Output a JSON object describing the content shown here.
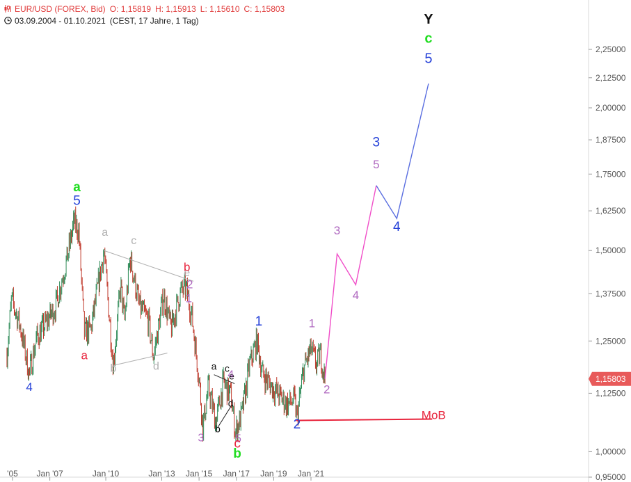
{
  "header": {
    "symbol": "EUR/USD (FOREX, Bid)",
    "open": "O: 1,15819",
    "high": "H: 1,15913",
    "low": "L: 1,15610",
    "close": "C: 1,15803",
    "range": "03.09.2004 - 01.10.2021",
    "info": "(CEST, 17 Jahre, 1 Tag)"
  },
  "colors": {
    "up": "#2e8b57",
    "down": "#c0392b",
    "blue": "#2440d8",
    "green": "#22dd22",
    "red": "#e8243c",
    "purple": "#b06ac0",
    "pink": "#f04ec8",
    "grey": "#b0b0b0",
    "projBlue": "#5a6ee0"
  },
  "chart_data": {
    "type": "line",
    "title": "",
    "xlabel": "",
    "ylabel": "",
    "yscale": "log",
    "ylim": [
      0.95,
      2.35
    ],
    "xlim": [
      2004.7,
      2025.8
    ],
    "last_price": "1,15803",
    "y_ticks": [
      {
        "v": 2.25,
        "label": "2,25000"
      },
      {
        "v": 2.125,
        "label": "2,12500"
      },
      {
        "v": 2.0,
        "label": "2,00000"
      },
      {
        "v": 1.875,
        "label": "1,87500"
      },
      {
        "v": 1.75,
        "label": "1,75000"
      },
      {
        "v": 1.625,
        "label": "1,62500"
      },
      {
        "v": 1.5,
        "label": "1,50000"
      },
      {
        "v": 1.375,
        "label": "1,37500"
      },
      {
        "v": 1.25,
        "label": "1,25000"
      },
      {
        "v": 1.125,
        "label": "1,12500"
      },
      {
        "v": 1.0,
        "label": "1,00000"
      },
      {
        "v": 0.95,
        "label": "0,95000"
      }
    ],
    "x_ticks": [
      {
        "t": 2005.0,
        "label": "'05"
      },
      {
        "t": 2007.0,
        "label": "Jan '07"
      },
      {
        "t": 2010.0,
        "label": "Jan '10"
      },
      {
        "t": 2013.0,
        "label": "Jan '13"
      },
      {
        "t": 2015.0,
        "label": "Jan '15"
      },
      {
        "t": 2017.0,
        "label": "Jan '17"
      },
      {
        "t": 2019.0,
        "label": "Jan '19"
      },
      {
        "t": 2021.0,
        "label": "Jan '21"
      }
    ],
    "price_path": [
      [
        2004.7,
        1.22
      ],
      [
        2004.95,
        1.36
      ],
      [
        2005.4,
        1.29
      ],
      [
        2005.9,
        1.17
      ],
      [
        2006.3,
        1.26
      ],
      [
        2006.6,
        1.28
      ],
      [
        2007.3,
        1.34
      ],
      [
        2007.9,
        1.47
      ],
      [
        2008.3,
        1.59
      ],
      [
        2008.55,
        1.56
      ],
      [
        2008.85,
        1.27
      ],
      [
        2009.2,
        1.28
      ],
      [
        2009.9,
        1.5
      ],
      [
        2010.4,
        1.19
      ],
      [
        2010.8,
        1.4
      ],
      [
        2011.0,
        1.3
      ],
      [
        2011.3,
        1.48
      ],
      [
        2011.8,
        1.34
      ],
      [
        2012.3,
        1.3
      ],
      [
        2012.55,
        1.21
      ],
      [
        2013.1,
        1.37
      ],
      [
        2013.5,
        1.28
      ],
      [
        2014.0,
        1.38
      ],
      [
        2014.3,
        1.39
      ],
      [
        2014.6,
        1.32
      ],
      [
        2015.0,
        1.16
      ],
      [
        2015.2,
        1.05
      ],
      [
        2015.5,
        1.14
      ],
      [
        2015.9,
        1.06
      ],
      [
        2016.3,
        1.15
      ],
      [
        2016.7,
        1.12
      ],
      [
        2016.95,
        1.04
      ],
      [
        2017.3,
        1.08
      ],
      [
        2017.7,
        1.19
      ],
      [
        2018.1,
        1.25
      ],
      [
        2018.4,
        1.17
      ],
      [
        2018.9,
        1.14
      ],
      [
        2019.3,
        1.12
      ],
      [
        2019.7,
        1.1
      ],
      [
        2020.1,
        1.11
      ],
      [
        2020.25,
        1.07
      ],
      [
        2020.6,
        1.18
      ],
      [
        2021.0,
        1.23
      ],
      [
        2021.3,
        1.19
      ],
      [
        2021.5,
        1.22
      ],
      [
        2021.75,
        1.158
      ]
    ],
    "projection_pink": [
      [
        2021.75,
        1.158
      ],
      [
        2022.4,
        1.49
      ],
      [
        2023.4,
        1.4
      ],
      [
        2024.5,
        1.71
      ]
    ],
    "projection_blue": [
      [
        2024.5,
        1.71
      ],
      [
        2025.6,
        1.6
      ],
      [
        2027.3,
        2.1
      ]
    ],
    "mob_line": {
      "t0": 2020.2,
      "t1": 2027.5,
      "v": 1.065,
      "label": "MoB"
    },
    "wave_labels": [
      {
        "t": 2005.9,
        "v": 1.13,
        "text": "4",
        "color": "blue",
        "size": 17
      },
      {
        "t": 2008.45,
        "v": 1.69,
        "text": "a",
        "color": "green",
        "size": 19,
        "bold": true
      },
      {
        "t": 2008.45,
        "v": 1.645,
        "text": "5",
        "color": "blue",
        "size": 19
      },
      {
        "t": 2008.85,
        "v": 1.205,
        "text": "a",
        "color": "red",
        "size": 17
      },
      {
        "t": 2009.95,
        "v": 1.545,
        "text": "a",
        "color": "grey",
        "size": 16
      },
      {
        "t": 2010.4,
        "v": 1.175,
        "text": "b",
        "color": "grey",
        "size": 16
      },
      {
        "t": 2011.5,
        "v": 1.52,
        "text": "c",
        "color": "grey",
        "size": 16
      },
      {
        "t": 2012.7,
        "v": 1.18,
        "text": "d",
        "color": "grey",
        "size": 16
      },
      {
        "t": 2014.35,
        "v": 1.425,
        "text": "e",
        "color": "grey",
        "size": 16
      },
      {
        "t": 2014.35,
        "v": 1.44,
        "text": "b",
        "color": "red",
        "size": 17
      },
      {
        "t": 2014.5,
        "v": 1.39,
        "text": "2",
        "color": "purple",
        "size": 17
      },
      {
        "t": 2014.45,
        "v": 1.352,
        "text": "1",
        "color": "purple",
        "size": 17
      },
      {
        "t": 2015.1,
        "v": 1.021,
        "text": "3",
        "color": "purple",
        "size": 16
      },
      {
        "t": 2015.8,
        "v": 1.18,
        "text": "a",
        "color": "black",
        "size": 14
      },
      {
        "t": 2016.5,
        "v": 1.175,
        "text": "c",
        "color": "black",
        "size": 14
      },
      {
        "t": 2016.75,
        "v": 1.157,
        "text": "e",
        "color": "black",
        "size": 14
      },
      {
        "t": 2016.7,
        "v": 1.16,
        "text": "4",
        "color": "purple",
        "size": 16
      },
      {
        "t": 2016.0,
        "v": 1.04,
        "text": "b",
        "color": "black",
        "size": 14
      },
      {
        "t": 2016.7,
        "v": 1.095,
        "text": "d",
        "color": "black",
        "size": 14
      },
      {
        "t": 2017.1,
        "v": 1.02,
        "text": "5",
        "color": "purple",
        "size": 16
      },
      {
        "t": 2017.05,
        "v": 1.008,
        "text": "c",
        "color": "red",
        "size": 19
      },
      {
        "t": 2017.05,
        "v": 0.988,
        "text": "b",
        "color": "green",
        "size": 19,
        "bold": true
      },
      {
        "t": 2018.2,
        "v": 1.29,
        "text": "1",
        "color": "blue",
        "size": 19
      },
      {
        "t": 2020.25,
        "v": 1.048,
        "text": "2",
        "color": "blue",
        "size": 19
      },
      {
        "t": 2021.05,
        "v": 1.285,
        "text": "1",
        "color": "purple",
        "size": 17
      },
      {
        "t": 2021.85,
        "v": 1.125,
        "text": "2",
        "color": "purple",
        "size": 17
      },
      {
        "t": 2022.4,
        "v": 1.55,
        "text": "3",
        "color": "purple",
        "size": 17
      },
      {
        "t": 2023.4,
        "v": 1.36,
        "text": "4",
        "color": "purple",
        "size": 17
      },
      {
        "t": 2024.5,
        "v": 1.85,
        "text": "3",
        "color": "blue",
        "size": 19
      },
      {
        "t": 2024.5,
        "v": 1.77,
        "text": "5",
        "color": "purple",
        "size": 17
      },
      {
        "t": 2025.6,
        "v": 1.56,
        "text": "4",
        "color": "blue",
        "size": 19
      },
      {
        "t": 2027.3,
        "v": 2.37,
        "text": "Y",
        "color": "black",
        "size": 20,
        "bold": true
      },
      {
        "t": 2027.3,
        "v": 2.28,
        "text": "c",
        "color": "green",
        "size": 20,
        "bold": true
      },
      {
        "t": 2027.3,
        "v": 2.19,
        "text": "5",
        "color": "blue",
        "size": 20
      }
    ],
    "triangle_lines": [
      {
        "points": [
          [
            2009.9,
            1.5
          ],
          [
            2014.7,
            1.41
          ]
        ],
        "color": "grey"
      },
      {
        "points": [
          [
            2010.4,
            1.19
          ],
          [
            2013.3,
            1.22
          ]
        ],
        "color": "grey"
      },
      {
        "points": [
          [
            2015.8,
            1.168
          ],
          [
            2016.9,
            1.147
          ]
        ],
        "color": "black"
      },
      {
        "points": [
          [
            2016.0,
            1.05
          ],
          [
            2016.7,
            1.095
          ]
        ],
        "color": "black"
      }
    ]
  }
}
